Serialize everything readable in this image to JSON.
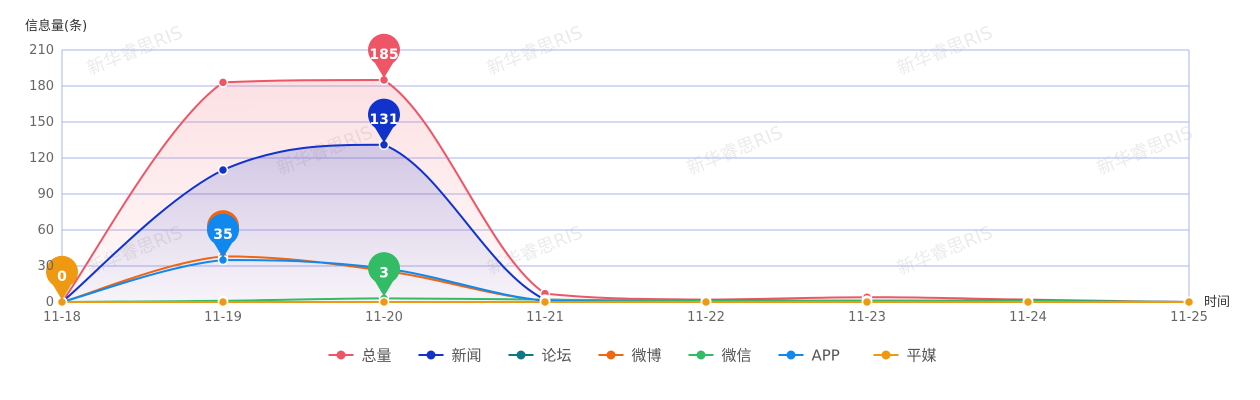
{
  "chart_data": {
    "type": "line",
    "ylabel": "信息量(条)",
    "xlabel": "时间",
    "ylim": [
      0,
      210
    ],
    "yticks": [
      0,
      30,
      60,
      90,
      120,
      150,
      180,
      210
    ],
    "categories": [
      "11-18",
      "11-19",
      "11-20",
      "11-21",
      "11-22",
      "11-23",
      "11-24",
      "11-25"
    ],
    "grid": true,
    "legend_position": "bottom",
    "watermark": "新华睿思RIS",
    "series": [
      {
        "name": "总量",
        "color": "#ee5566",
        "values": [
          0,
          183,
          185,
          7,
          2,
          4,
          2,
          0
        ],
        "area": true,
        "max_label": "185"
      },
      {
        "name": "新闻",
        "color": "#1133cc",
        "values": [
          0,
          110,
          131,
          2,
          1,
          1,
          1,
          0
        ],
        "area": true,
        "max_label": "131"
      },
      {
        "name": "论坛",
        "color": "#117788",
        "values": [
          0,
          0,
          0,
          0,
          0,
          0,
          0,
          0
        ]
      },
      {
        "name": "微博",
        "color": "#ee6611",
        "values": [
          0,
          38,
          26,
          1,
          0,
          1,
          0,
          0
        ],
        "max_label": "38"
      },
      {
        "name": "微信",
        "color": "#33bb66",
        "values": [
          0,
          1,
          3,
          2,
          1,
          1,
          1,
          0
        ],
        "max_label": "3"
      },
      {
        "name": "APP",
        "color": "#1188ee",
        "values": [
          0,
          35,
          28,
          1,
          0,
          0,
          0,
          0
        ],
        "max_label": "35"
      },
      {
        "name": "平媒",
        "color": "#ee9911",
        "values": [
          0,
          0,
          0,
          0,
          0,
          0,
          0,
          0
        ],
        "max_label": "0"
      }
    ]
  }
}
